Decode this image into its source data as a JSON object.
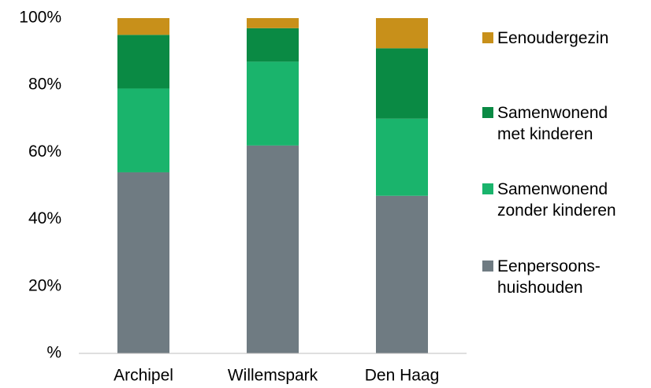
{
  "chart_data": {
    "type": "stacked_bar",
    "categories": [
      "Archipel",
      "Willemspark",
      "Den Haag"
    ],
    "series": [
      {
        "name": "Eenpersoons-\nhuishouden",
        "color": "#6f7b82",
        "values": [
          54,
          62,
          47
        ]
      },
      {
        "name": "Samenwonend\nzonder kinderen",
        "color": "#1ab46c",
        "values": [
          25,
          25,
          23
        ]
      },
      {
        "name": "Samenwonend\nmet kinderen",
        "color": "#0a8a44",
        "values": [
          16,
          10,
          21
        ]
      },
      {
        "name": "Eenoudergezin",
        "color": "#c8901a",
        "values": [
          5,
          3,
          9
        ]
      }
    ],
    "ylim": [
      0,
      100
    ],
    "yticks": [
      {
        "value": 0,
        "label": "%"
      },
      {
        "value": 20,
        "label": "20%"
      },
      {
        "value": 40,
        "label": "40%"
      },
      {
        "value": 60,
        "label": "60%"
      },
      {
        "value": 80,
        "label": "80%"
      },
      {
        "value": 100,
        "label": "100%"
      }
    ],
    "legend": "right"
  }
}
